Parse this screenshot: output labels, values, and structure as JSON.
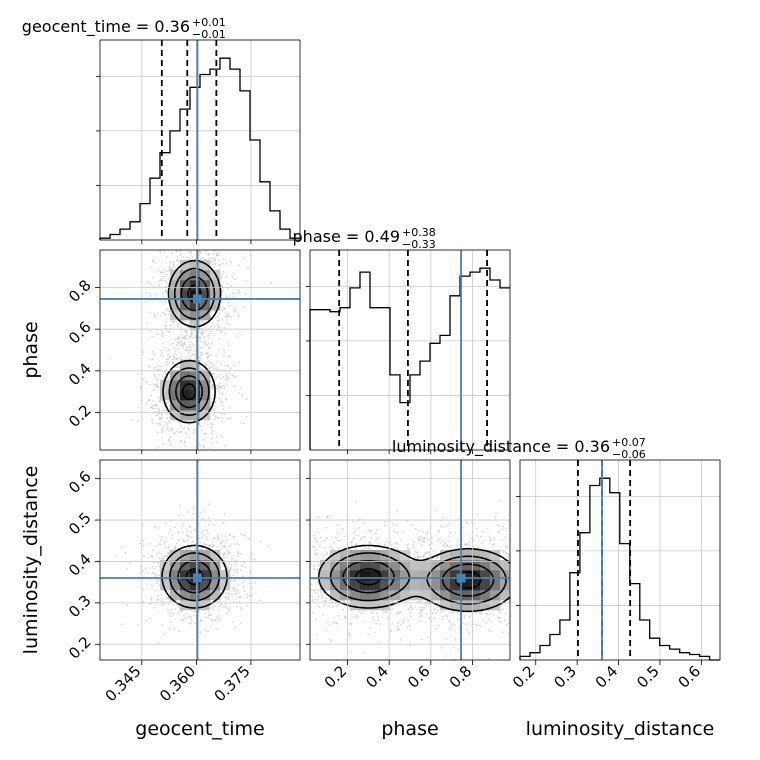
{
  "chart_data": {
    "type": "corner",
    "parameters": [
      "geocent_time",
      "phase",
      "luminosity_distance"
    ],
    "truth_color": "#4682b4",
    "truths": {
      "geocent_time": 0.3603,
      "phase": 0.745,
      "luminosity_distance": 0.36
    },
    "titles": {
      "geocent_time": {
        "name": "geocent_time",
        "median": "0.36",
        "plus": "+0.01",
        "minus": "−0.01"
      },
      "phase": {
        "name": "phase",
        "median": "0.49",
        "plus": "+0.38",
        "minus": "−0.33"
      },
      "luminosity_distance": {
        "name": "luminosity_distance",
        "median": "0.36",
        "plus": "+0.07",
        "minus": "−0.06"
      }
    },
    "ranges": {
      "geocent_time": [
        0.3335,
        0.3885
      ],
      "phase": [
        0.02,
        0.98
      ],
      "luminosity_distance": [
        0.162,
        0.645
      ]
    },
    "ticks": {
      "geocent_time": [
        {
          "v": 0.345,
          "label": "0.345"
        },
        {
          "v": 0.36,
          "label": "0.360"
        },
        {
          "v": 0.375,
          "label": "0.375"
        }
      ],
      "phase": [
        {
          "v": 0.2,
          "label": "0.2"
        },
        {
          "v": 0.4,
          "label": "0.4"
        },
        {
          "v": 0.6,
          "label": "0.6"
        },
        {
          "v": 0.8,
          "label": "0.8"
        }
      ],
      "luminosity_distance": [
        {
          "v": 0.2,
          "label": "0.2"
        },
        {
          "v": 0.3,
          "label": "0.3"
        },
        {
          "v": 0.4,
          "label": "0.4"
        },
        {
          "v": 0.5,
          "label": "0.5"
        },
        {
          "v": 0.6,
          "label": "0.6"
        }
      ]
    },
    "histograms": {
      "geocent_time": {
        "bin_start": 0.3335,
        "bin_width": 0.00275,
        "counts": [
          0.01,
          0.03,
          0.06,
          0.1,
          0.2,
          0.34,
          0.48,
          0.6,
          0.72,
          0.84,
          0.91,
          0.94,
          1.0,
          0.94,
          0.82,
          0.55,
          0.32,
          0.16,
          0.06,
          0.01
        ],
        "quantiles": [
          0.3505,
          0.3575,
          0.3655
        ]
      },
      "phase": {
        "bin_start": 0.02,
        "bin_width": 0.048,
        "counts": [
          0.71,
          0.71,
          0.7,
          0.72,
          0.82,
          0.9,
          0.72,
          0.72,
          0.38,
          0.24,
          0.38,
          0.45,
          0.54,
          0.58,
          0.78,
          0.88,
          0.9,
          0.92,
          0.86,
          0.82
        ],
        "quantiles": [
          0.16,
          0.49,
          0.87
        ]
      },
      "luminosity_distance": {
        "bin_start": 0.162,
        "bin_width": 0.0241,
        "counts": [
          0.02,
          0.04,
          0.08,
          0.14,
          0.22,
          0.48,
          0.7,
          0.96,
          1.0,
          0.92,
          0.64,
          0.42,
          0.22,
          0.12,
          0.08,
          0.06,
          0.04,
          0.03,
          0.02,
          0.0
        ],
        "quantiles": [
          0.302,
          0.36,
          0.428
        ]
      }
    },
    "contours_2d": [
      {
        "x": "geocent_time",
        "y": "phase",
        "modes": [
          {
            "cx": 0.3595,
            "cy": 0.77,
            "sx": 0.0036,
            "sy": 0.08
          },
          {
            "cx": 0.358,
            "cy": 0.3,
            "sx": 0.0036,
            "sy": 0.075
          }
        ]
      },
      {
        "x": "geocent_time",
        "y": "luminosity_distance",
        "modes": [
          {
            "cx": 0.3595,
            "cy": 0.363,
            "sx": 0.0045,
            "sy": 0.038
          }
        ]
      },
      {
        "x": "phase",
        "y": "luminosity_distance",
        "modes": [
          {
            "cx": 0.3,
            "cy": 0.363,
            "sx": 0.12,
            "sy": 0.038
          },
          {
            "cx": 0.78,
            "cy": 0.355,
            "sx": 0.12,
            "sy": 0.038
          }
        ]
      }
    ],
    "grid": true
  }
}
